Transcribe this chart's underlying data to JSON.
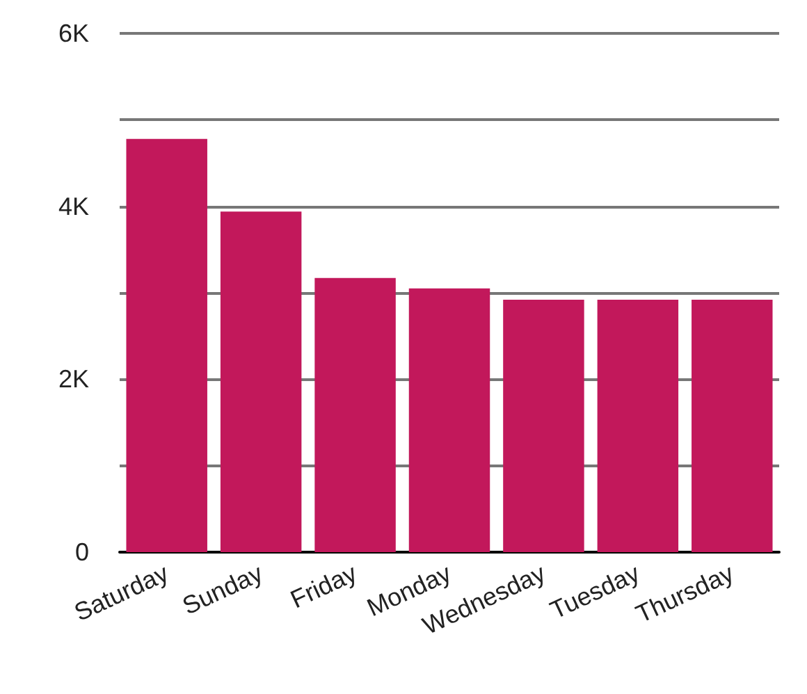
{
  "chart_data": {
    "type": "bar",
    "categories": [
      "Saturday",
      "Sunday",
      "Friday",
      "Monday",
      "Wednesday",
      "Tuesday",
      "Thursday"
    ],
    "values": [
      4780,
      3940,
      3170,
      3050,
      2920,
      2920,
      2920
    ],
    "color": "#c2185b",
    "ylim": [
      0,
      6000
    ],
    "yticks": [
      0,
      {
        "value": 1000,
        "label": null
      },
      {
        "value": 2000,
        "label": "2K"
      },
      {
        "value": 3000,
        "label": null
      },
      {
        "value": 4000,
        "label": "4K"
      },
      {
        "value": 5000,
        "label": null
      },
      {
        "value": 6000,
        "label": "6K"
      }
    ],
    "grid": "y"
  }
}
